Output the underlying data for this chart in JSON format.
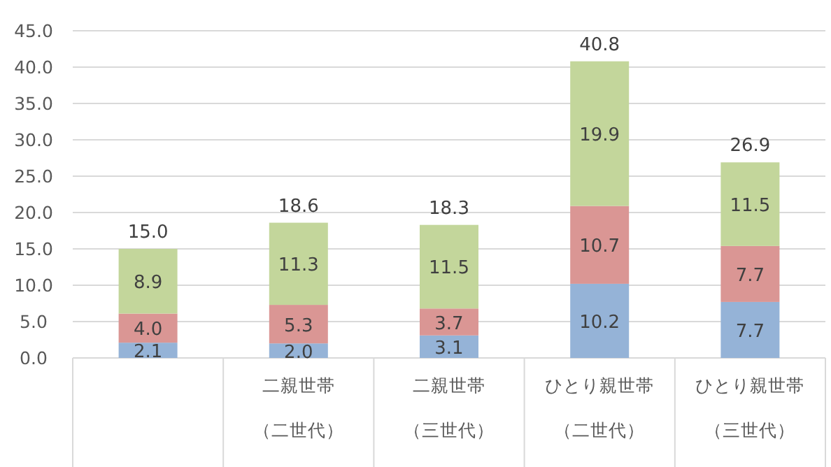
{
  "chart_data": {
    "type": "bar",
    "stacked": true,
    "categories": [
      null,
      "二親世帯（二世代）",
      "二親世帯（三世代）",
      "ひとり親世帯（二世代）",
      "ひとり親世帯（三世代）"
    ],
    "series": [
      {
        "color": "#95b3d7",
        "values": [
          2.1,
          2.0,
          3.1,
          10.2,
          7.7
        ],
        "value_labels": [
          "2.1",
          "2.0",
          "3.1",
          "10.2",
          "7.7"
        ]
      },
      {
        "color": "#da9694",
        "values": [
          4.0,
          5.3,
          3.7,
          10.7,
          7.7
        ],
        "value_labels": [
          "4.0",
          "5.3",
          "3.7",
          "10.7",
          "7.7"
        ]
      },
      {
        "color": "#c3d69b",
        "values": [
          8.9,
          11.3,
          11.5,
          19.9,
          11.5
        ],
        "value_labels": [
          "8.9",
          "11.3",
          "11.5",
          "19.9",
          "11.5"
        ]
      }
    ],
    "totals": [
      "15.0",
      "18.6",
      "18.3",
      "40.8",
      "26.9"
    ],
    "ylim": [
      0,
      45
    ],
    "yticks": [
      {
        "value": 0,
        "label": "0.0"
      },
      {
        "value": 5,
        "label": "5.0"
      },
      {
        "value": 10,
        "label": "10.0"
      },
      {
        "value": 15,
        "label": "15.0"
      },
      {
        "value": 20,
        "label": "20.0"
      },
      {
        "value": 25,
        "label": "25.0"
      },
      {
        "value": 30,
        "label": "30.0"
      },
      {
        "value": 35,
        "label": "35.0"
      },
      {
        "value": 40,
        "label": "40.0"
      },
      {
        "value": 45,
        "label": "45.0"
      }
    ],
    "grid": "y"
  }
}
